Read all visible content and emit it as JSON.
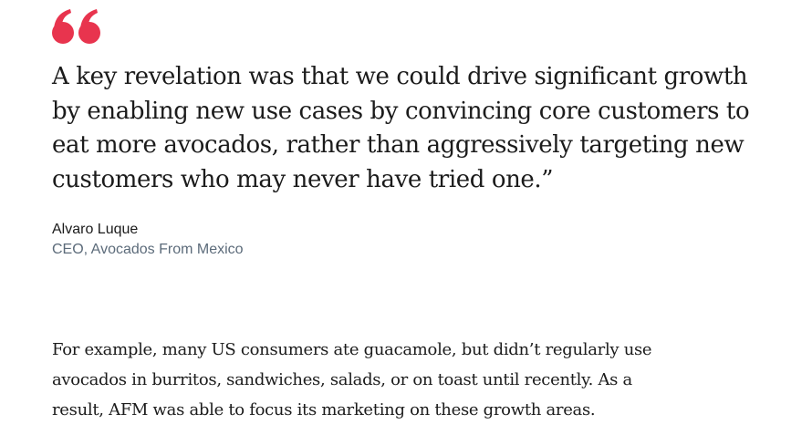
{
  "quote": {
    "lines": [
      "A key revelation was that we could drive significant growth",
      "by enabling new use cases by convincing core customers to",
      "eat more avocados, rather than aggressively targeting new",
      "customers who may never have tried one.”"
    ],
    "author": "Alvaro Luque",
    "role": "CEO, Avocados From Mexico"
  },
  "paragraph": {
    "lines": [
      "For example, many US consumers ate guacamole, but didn’t regularly use",
      "avocados in burritos, sandwiches, salads, or on toast until recently. As a",
      "result, AFM was able to focus its marketing on these growth areas."
    ]
  }
}
